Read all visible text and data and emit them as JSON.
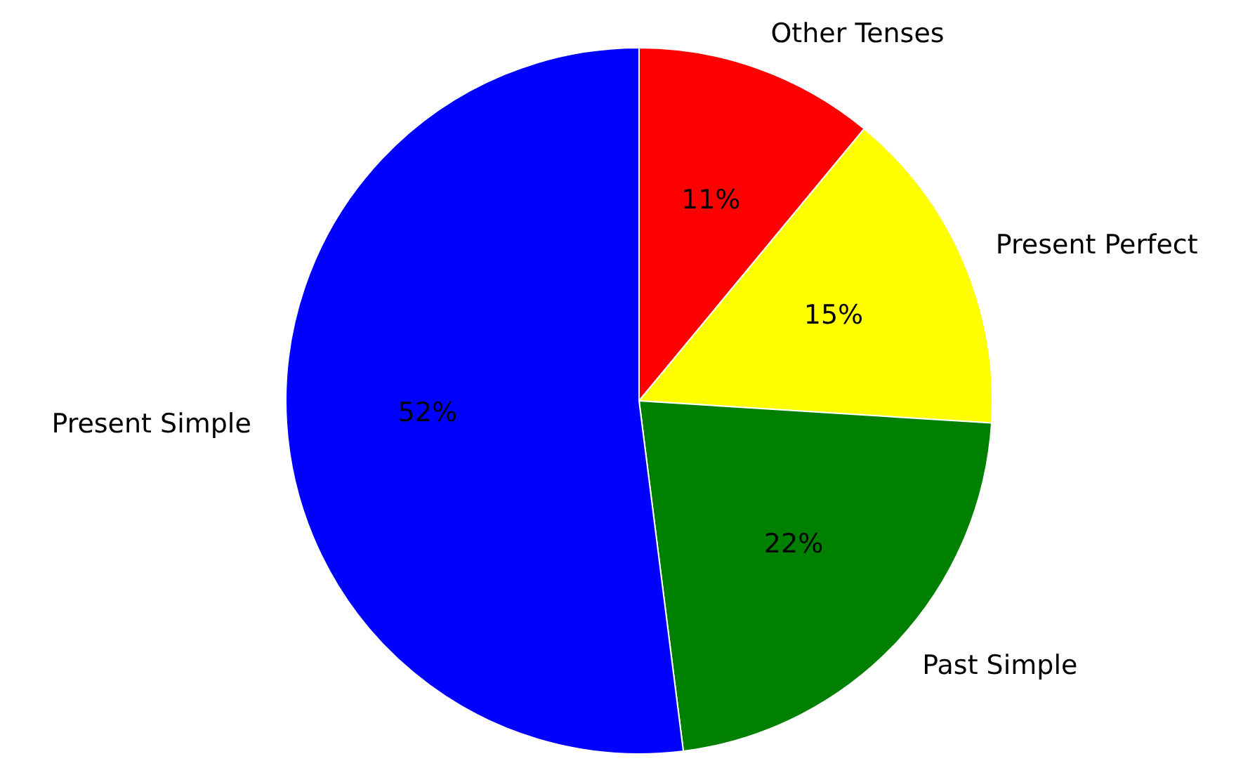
{
  "chart_data": {
    "type": "pie",
    "categories": [
      "Other Tenses",
      "Present Perfect",
      "Past Simple",
      "Present Simple"
    ],
    "values": [
      11,
      15,
      22,
      52
    ],
    "colors": [
      "#ff0000",
      "#ffff00",
      "#008000",
      "#0000ff"
    ],
    "value_labels": [
      "11%",
      "15%",
      "22%",
      "52%"
    ],
    "legend": false
  }
}
